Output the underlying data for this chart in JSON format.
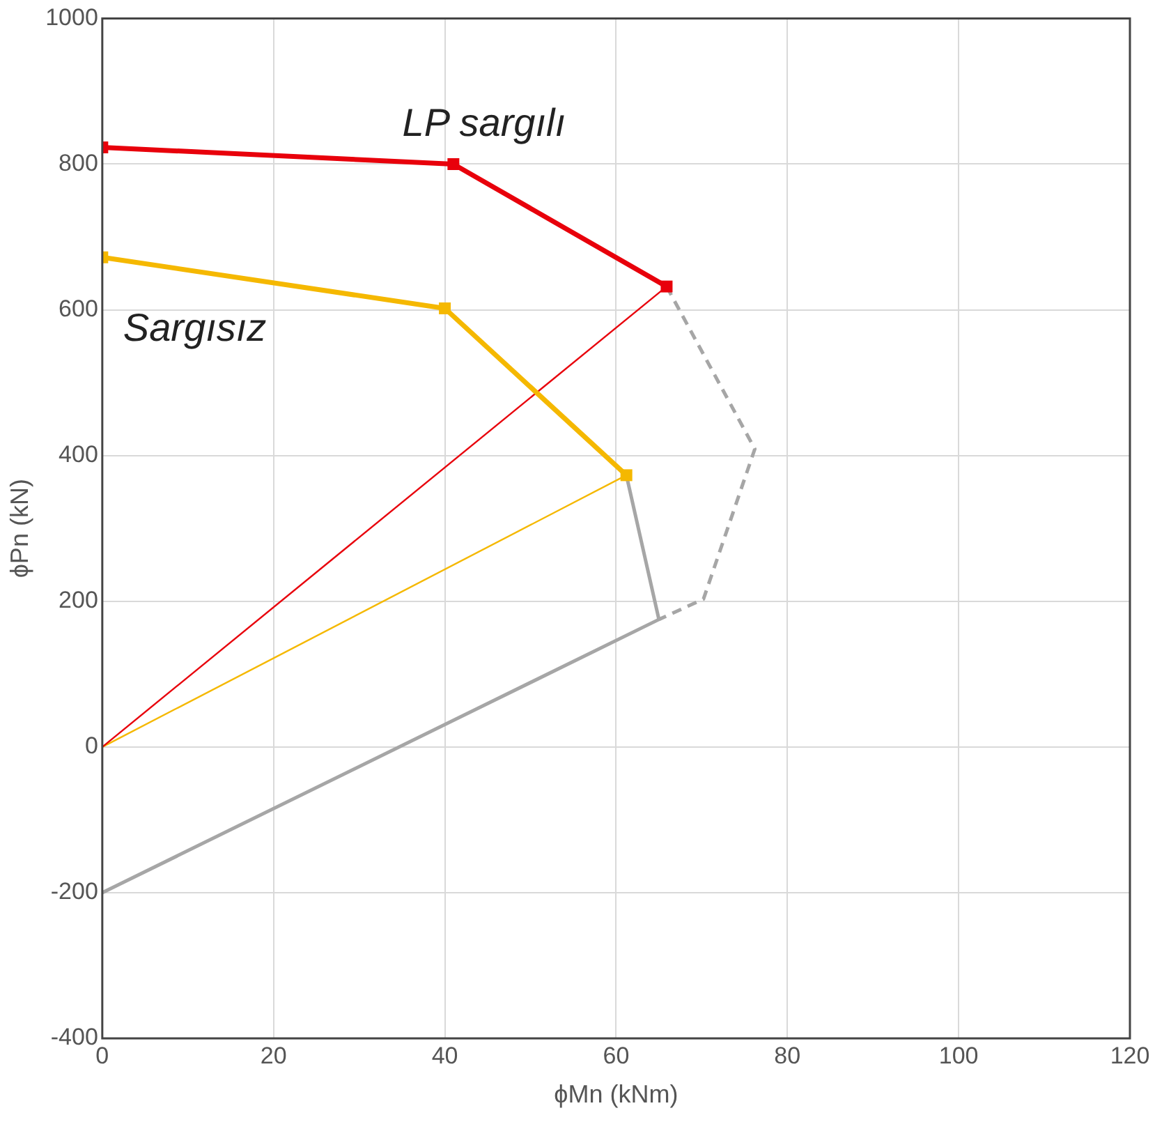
{
  "chart_data": {
    "type": "line",
    "xlabel": "ϕMn (kNm)",
    "ylabel": "ϕPn (kN)",
    "xlim": [
      0,
      120
    ],
    "xticks": [
      0,
      20,
      40,
      60,
      80,
      100,
      120
    ],
    "ylim": [
      -400,
      1000
    ],
    "yticks": [
      -400,
      -200,
      0,
      200,
      400,
      600,
      800,
      1000
    ],
    "grid": true,
    "legend": false,
    "series": [
      {
        "name": "LP sargılı",
        "color": "#e8000b",
        "x": [
          0,
          41,
          65.9
        ],
        "values": [
          823,
          800,
          632
        ],
        "marker": "square",
        "line_style": "solid"
      },
      {
        "name": "Sargısız",
        "color": "#f5b800",
        "x": [
          0,
          40,
          61.2
        ],
        "values": [
          672,
          602,
          373
        ],
        "marker": "square",
        "line_style": "solid"
      },
      {
        "color": "#e8000b",
        "x": [
          0,
          65.9
        ],
        "values": [
          0,
          632
        ],
        "marker": "none",
        "line_style": "solid"
      },
      {
        "color": "#f5b800",
        "x": [
          0,
          61.2
        ],
        "values": [
          0,
          373
        ],
        "marker": "none",
        "line_style": "solid"
      },
      {
        "color": "#a6a6a6",
        "x": [
          61.2,
          65,
          0
        ],
        "values": [
          373,
          175,
          -200
        ],
        "marker": "none",
        "line_style": "solid"
      },
      {
        "color": "#a6a6a6",
        "x": [
          65.9,
          76.2,
          70.2,
          65
        ],
        "values": [
          632,
          409,
          203,
          175
        ],
        "marker": "none",
        "line_style": "dashed"
      }
    ]
  }
}
